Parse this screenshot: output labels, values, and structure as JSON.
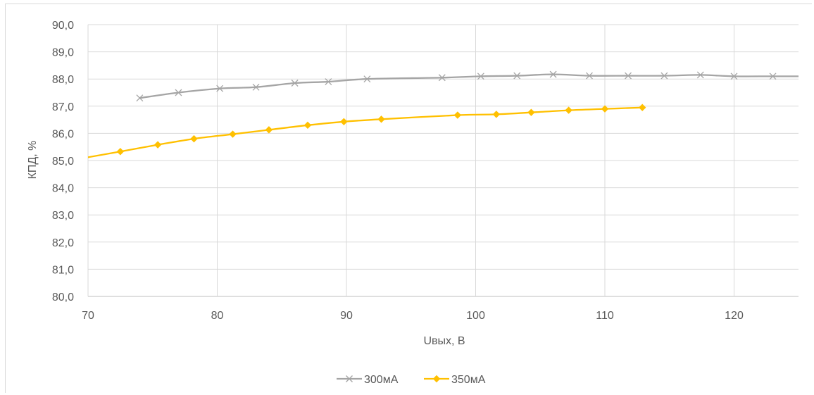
{
  "chart_data": {
    "type": "line",
    "title": "",
    "xlabel": "Uвых, В",
    "ylabel": "КПД, %",
    "xlim": [
      70,
      125
    ],
    "ylim": [
      80,
      90
    ],
    "x_ticks": [
      70,
      80,
      90,
      100,
      110,
      120
    ],
    "x_tick_labels": [
      "70",
      "80",
      "90",
      "100",
      "110",
      "120"
    ],
    "y_ticks": [
      80,
      81,
      82,
      83,
      84,
      85,
      86,
      87,
      88,
      89,
      90
    ],
    "y_tick_labels": [
      "80,0",
      "81,0",
      "82,0",
      "83,0",
      "84,0",
      "85,0",
      "86,0",
      "87,0",
      "88,0",
      "89,0",
      "90,0"
    ],
    "grid": true,
    "legend_position": "bottom",
    "series": [
      {
        "name": "300мА",
        "color": "#a5a5a5",
        "marker": "x",
        "line_extends_to": [
          126,
          88.1
        ],
        "x": [
          74.0,
          77.0,
          80.2,
          83.0,
          86.0,
          88.6,
          91.6,
          97.4,
          100.4,
          103.2,
          106.0,
          108.8,
          111.8,
          114.6,
          117.4,
          120.0,
          123.0
        ],
        "y": [
          87.3,
          87.5,
          87.65,
          87.7,
          87.85,
          87.9,
          88.0,
          88.05,
          88.1,
          88.12,
          88.17,
          88.12,
          88.12,
          88.12,
          88.15,
          88.1,
          88.1
        ]
      },
      {
        "name": "350мА",
        "color": "#ffc000",
        "marker": "diamond",
        "line_starts_at": [
          70.0,
          85.12
        ],
        "x": [
          72.5,
          75.4,
          78.2,
          81.2,
          84.0,
          87.0,
          89.8,
          92.7,
          98.6,
          101.6,
          104.3,
          107.2,
          110.0,
          112.9
        ],
        "y": [
          85.33,
          85.58,
          85.8,
          85.97,
          86.13,
          86.3,
          86.43,
          86.52,
          86.67,
          86.7,
          86.77,
          86.85,
          86.9,
          86.95
        ]
      }
    ]
  }
}
